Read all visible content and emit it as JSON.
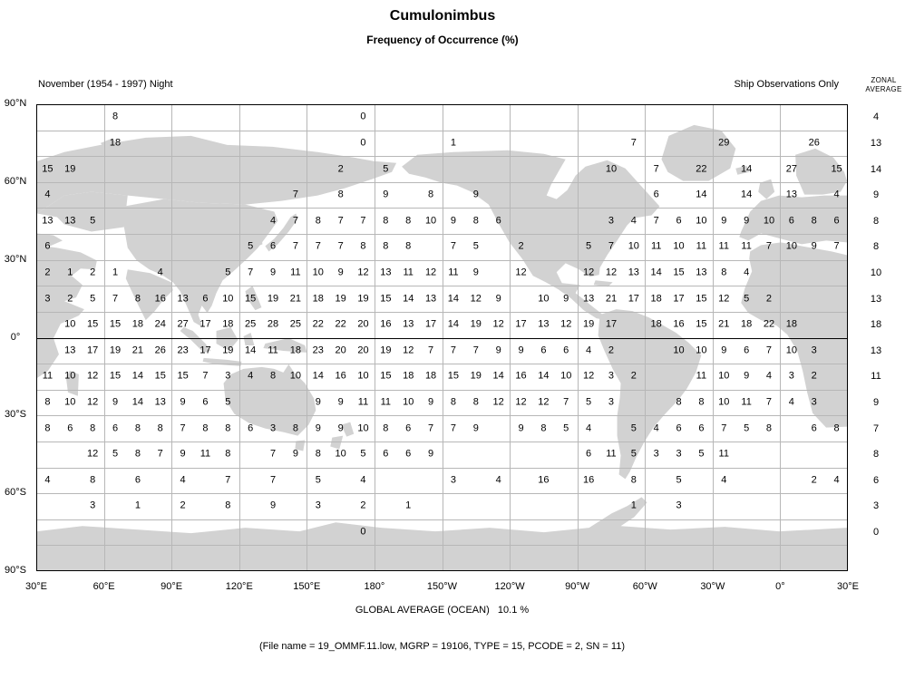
{
  "header": {
    "title": "Cumulonimbus",
    "subtitle": "Frequency of Occurrence (%)"
  },
  "meta": {
    "period": "November (1954 - 1997) Night",
    "source": "Ship Observations Only",
    "zonal_line1": "ZONAL",
    "zonal_line2": "AVERAGE"
  },
  "footer": {
    "global_average": "GLOBAL AVERAGE (OCEAN)   10.1 %",
    "file_info": "(File name = 19_OMMF.11.low, MGRP = 19106, TYPE = 15, PCODE = 2, SN = 11)"
  },
  "colors": {
    "land": "#d2d2d2",
    "grid_line": "#b7b7b7",
    "axis_line": "#000000",
    "text": "#000000"
  },
  "chart_data": {
    "type": "heatmap",
    "title": "Cumulonimbus",
    "subtitle": "Frequency of Occurrence (%)",
    "description": "Frequency of occurrence (%) of cumulonimbus in 10-degree grid cells over a world map, longitudes 30E eastward around to 30E, latitudes 90N to 90S",
    "cell_size_degrees": 10,
    "lat_labels": [
      "90°N",
      "60°N",
      "30°N",
      "0°",
      "30°S",
      "60°S",
      "90°S"
    ],
    "lon_labels": [
      "30°E",
      "60°E",
      "90°E",
      "120°E",
      "150°E",
      "180°",
      "150°W",
      "120°W",
      "90°W",
      "60°W",
      "30°W",
      "0°",
      "30°E"
    ],
    "zonal_averages": [
      4,
      13,
      14,
      9,
      8,
      8,
      10,
      13,
      18,
      13,
      11,
      9,
      7,
      8,
      6,
      3,
      0,
      null
    ],
    "global_average_ocean_pct": 10.1,
    "rows": [
      [
        null,
        null,
        null,
        8,
        null,
        null,
        null,
        null,
        null,
        null,
        null,
        null,
        null,
        null,
        0,
        null,
        null,
        null,
        null,
        null,
        null,
        null,
        null,
        null,
        null,
        null,
        null,
        null,
        null,
        null,
        null,
        null,
        null,
        null,
        null,
        null
      ],
      [
        null,
        null,
        null,
        18,
        null,
        null,
        null,
        null,
        null,
        null,
        null,
        null,
        null,
        null,
        0,
        null,
        null,
        null,
        1,
        null,
        null,
        null,
        null,
        null,
        null,
        null,
        7,
        null,
        null,
        null,
        29,
        null,
        null,
        null,
        26,
        null
      ],
      [
        15,
        19,
        null,
        null,
        null,
        null,
        null,
        null,
        null,
        null,
        null,
        null,
        null,
        2,
        null,
        5,
        null,
        null,
        null,
        null,
        null,
        null,
        null,
        null,
        null,
        10,
        null,
        7,
        null,
        22,
        null,
        14,
        null,
        27,
        null,
        15
      ],
      [
        4,
        null,
        null,
        null,
        null,
        null,
        null,
        null,
        null,
        null,
        null,
        7,
        null,
        8,
        null,
        9,
        null,
        8,
        null,
        9,
        null,
        null,
        null,
        null,
        null,
        null,
        null,
        6,
        null,
        14,
        null,
        14,
        null,
        13,
        null,
        4
      ],
      [
        13,
        13,
        5,
        null,
        null,
        null,
        null,
        null,
        null,
        null,
        4,
        7,
        8,
        7,
        7,
        8,
        8,
        10,
        9,
        8,
        6,
        null,
        null,
        null,
        null,
        3,
        4,
        7,
        6,
        10,
        9,
        9,
        10,
        6,
        8,
        6
      ],
      [
        6,
        null,
        null,
        null,
        null,
        null,
        null,
        null,
        null,
        5,
        6,
        7,
        7,
        7,
        8,
        8,
        8,
        null,
        7,
        5,
        null,
        2,
        null,
        null,
        5,
        7,
        10,
        11,
        10,
        11,
        11,
        11,
        7,
        10,
        9,
        7
      ],
      [
        2,
        1,
        2,
        1,
        null,
        4,
        null,
        null,
        5,
        7,
        9,
        11,
        10,
        9,
        12,
        13,
        11,
        12,
        11,
        9,
        null,
        12,
        null,
        null,
        12,
        12,
        13,
        14,
        15,
        13,
        8,
        4,
        null,
        null,
        null,
        null
      ],
      [
        3,
        2,
        5,
        7,
        8,
        16,
        13,
        6,
        10,
        15,
        19,
        21,
        18,
        19,
        19,
        15,
        14,
        13,
        14,
        12,
        9,
        null,
        10,
        9,
        13,
        21,
        17,
        18,
        17,
        15,
        12,
        5,
        2,
        null,
        null,
        null
      ],
      [
        null,
        10,
        15,
        15,
        18,
        24,
        27,
        17,
        18,
        25,
        28,
        25,
        22,
        22,
        20,
        16,
        13,
        17,
        14,
        19,
        12,
        17,
        13,
        12,
        19,
        17,
        null,
        18,
        16,
        15,
        21,
        18,
        22,
        18,
        null,
        null
      ],
      [
        null,
        13,
        17,
        19,
        21,
        26,
        23,
        17,
        19,
        14,
        11,
        18,
        23,
        20,
        20,
        19,
        12,
        7,
        7,
        7,
        9,
        9,
        6,
        6,
        4,
        2,
        null,
        null,
        10,
        10,
        9,
        6,
        7,
        10,
        3,
        null
      ],
      [
        11,
        10,
        12,
        15,
        14,
        15,
        15,
        7,
        3,
        4,
        8,
        10,
        14,
        16,
        10,
        15,
        18,
        18,
        15,
        19,
        14,
        16,
        14,
        10,
        12,
        3,
        2,
        null,
        null,
        11,
        10,
        9,
        4,
        3,
        2,
        null
      ],
      [
        8,
        10,
        12,
        9,
        14,
        13,
        9,
        6,
        5,
        null,
        null,
        null,
        9,
        9,
        11,
        11,
        10,
        9,
        8,
        8,
        12,
        12,
        12,
        7,
        5,
        3,
        null,
        null,
        8,
        8,
        10,
        11,
        7,
        4,
        3,
        null
      ],
      [
        8,
        6,
        8,
        6,
        8,
        8,
        7,
        8,
        8,
        6,
        3,
        8,
        9,
        9,
        10,
        8,
        6,
        7,
        7,
        9,
        null,
        9,
        8,
        5,
        4,
        null,
        5,
        4,
        6,
        6,
        7,
        5,
        8,
        null,
        6,
        8
      ],
      [
        null,
        null,
        12,
        5,
        8,
        7,
        9,
        11,
        8,
        null,
        7,
        9,
        8,
        10,
        5,
        6,
        6,
        9,
        null,
        null,
        null,
        null,
        null,
        null,
        6,
        11,
        5,
        3,
        3,
        5,
        11,
        null,
        null,
        null,
        null,
        null
      ],
      [
        4,
        null,
        8,
        null,
        6,
        null,
        4,
        null,
        7,
        null,
        7,
        null,
        5,
        null,
        4,
        null,
        null,
        null,
        3,
        null,
        4,
        null,
        16,
        null,
        16,
        null,
        8,
        null,
        5,
        null,
        4,
        null,
        null,
        null,
        2,
        4
      ],
      [
        null,
        null,
        3,
        null,
        1,
        null,
        2,
        null,
        8,
        null,
        9,
        null,
        3,
        null,
        2,
        null,
        1,
        null,
        null,
        null,
        null,
        null,
        null,
        null,
        null,
        null,
        1,
        null,
        3,
        null,
        null,
        null,
        null,
        null,
        null,
        null
      ],
      [
        null,
        null,
        null,
        null,
        null,
        null,
        null,
        null,
        null,
        null,
        null,
        null,
        null,
        null,
        0,
        null,
        null,
        null,
        null,
        null,
        null,
        null,
        null,
        null,
        null,
        null,
        null,
        null,
        null,
        null,
        null,
        null,
        null,
        null,
        null,
        null
      ],
      [
        null,
        null,
        null,
        null,
        null,
        null,
        null,
        null,
        null,
        null,
        null,
        null,
        null,
        null,
        null,
        null,
        null,
        null,
        null,
        null,
        null,
        null,
        null,
        null,
        null,
        null,
        null,
        null,
        null,
        null,
        null,
        null,
        null,
        null,
        null,
        null
      ]
    ]
  }
}
